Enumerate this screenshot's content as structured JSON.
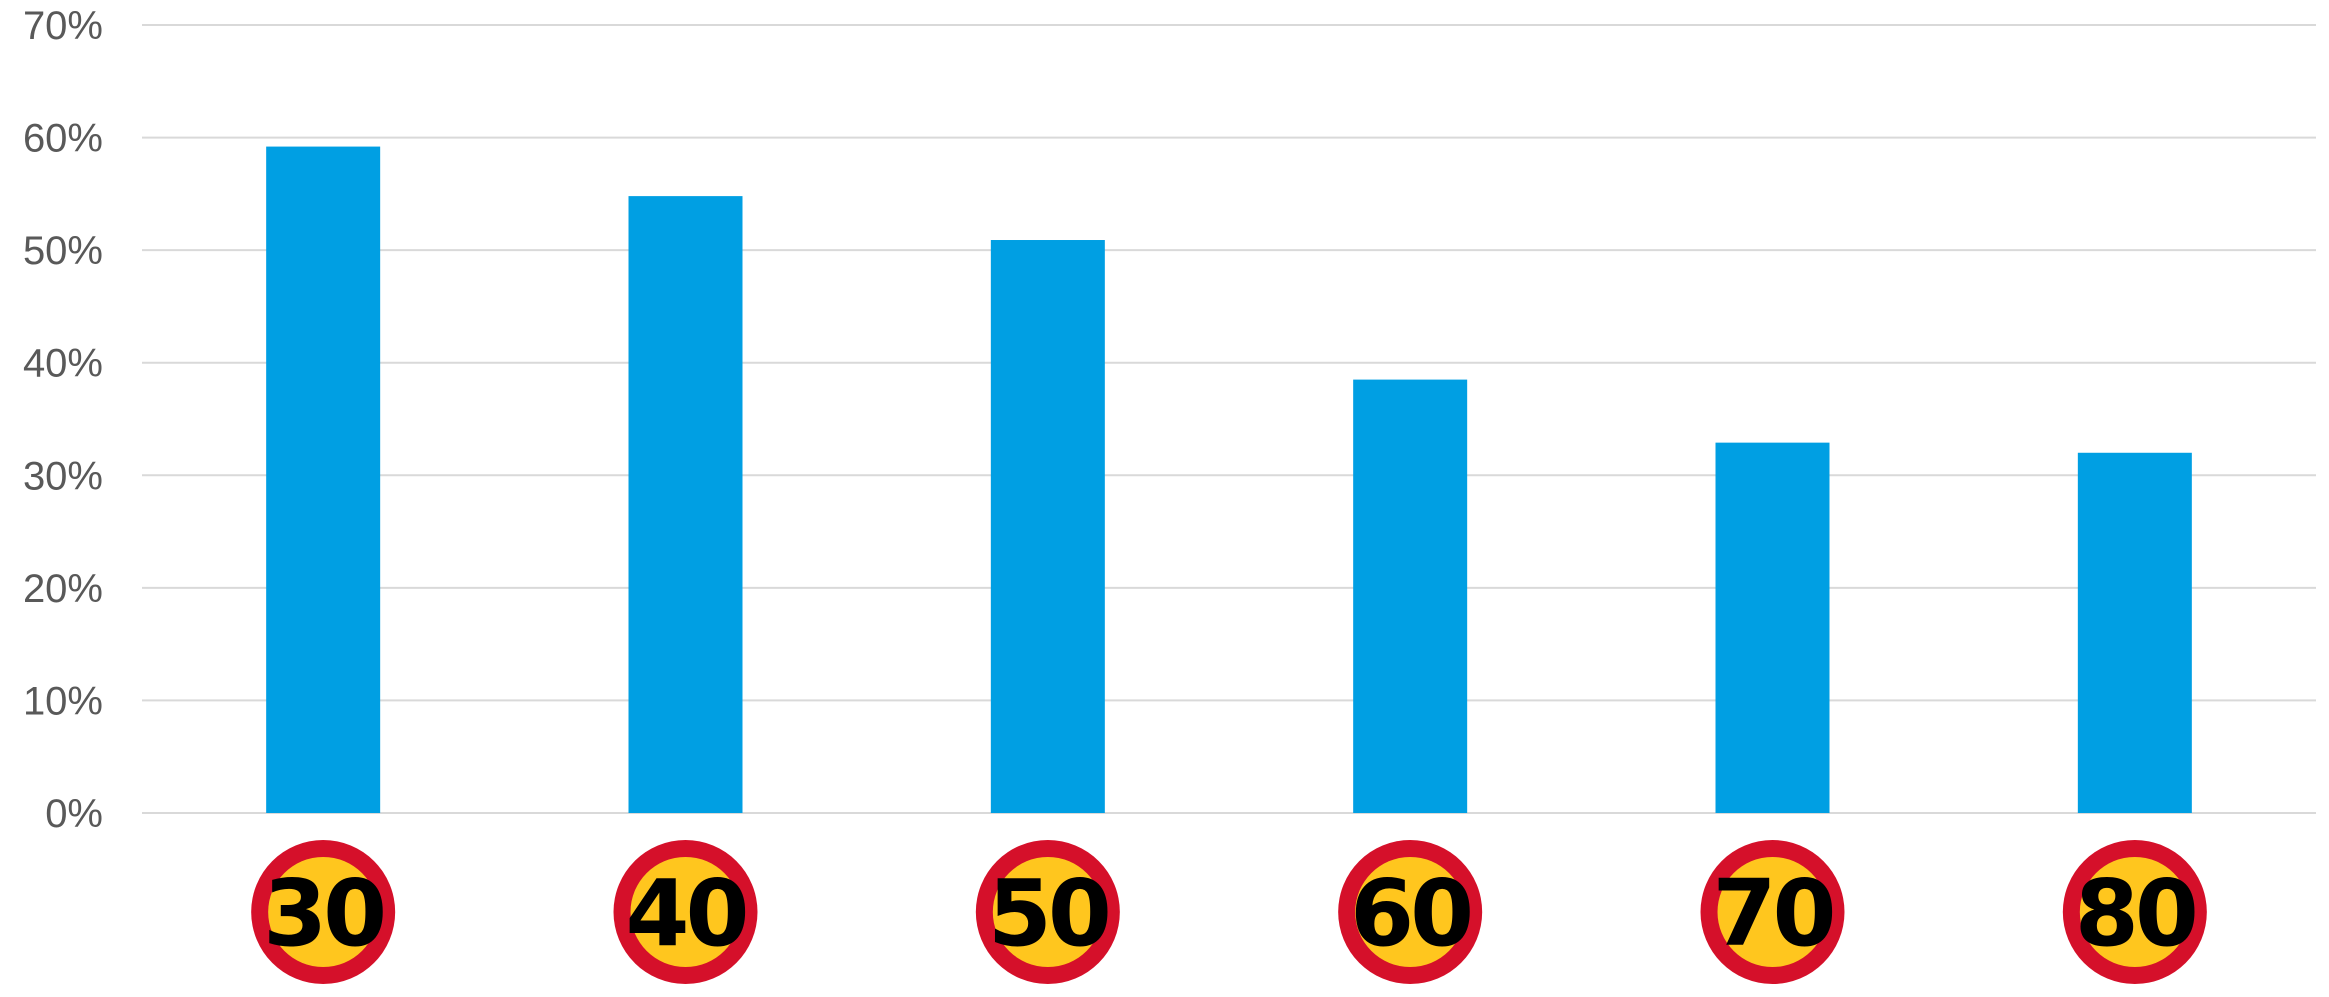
{
  "chart_data": {
    "type": "bar",
    "categories": [
      "30",
      "40",
      "50",
      "60",
      "70",
      "80"
    ],
    "values": [
      59.2,
      54.8,
      50.9,
      38.5,
      32.9,
      32.0
    ],
    "ylim": [
      0,
      70
    ],
    "yticks": [
      {
        "value": 0,
        "label": "0%"
      },
      {
        "value": 10,
        "label": "10%"
      },
      {
        "value": 20,
        "label": "20%"
      },
      {
        "value": 30,
        "label": "30%"
      },
      {
        "value": 40,
        "label": "40%"
      },
      {
        "value": 50,
        "label": "50%"
      },
      {
        "value": 60,
        "label": "60%"
      },
      {
        "value": 70,
        "label": "70%"
      }
    ],
    "grid": true,
    "legend": "none",
    "x_axis_style": "speed-limit-signs",
    "colors": {
      "bar": "#009FE3",
      "grid": "#D9D9D9",
      "tick_text": "#595959",
      "sign_ring": "#D5102A",
      "sign_fill": "#FFC61E",
      "sign_text": "#000000"
    }
  }
}
